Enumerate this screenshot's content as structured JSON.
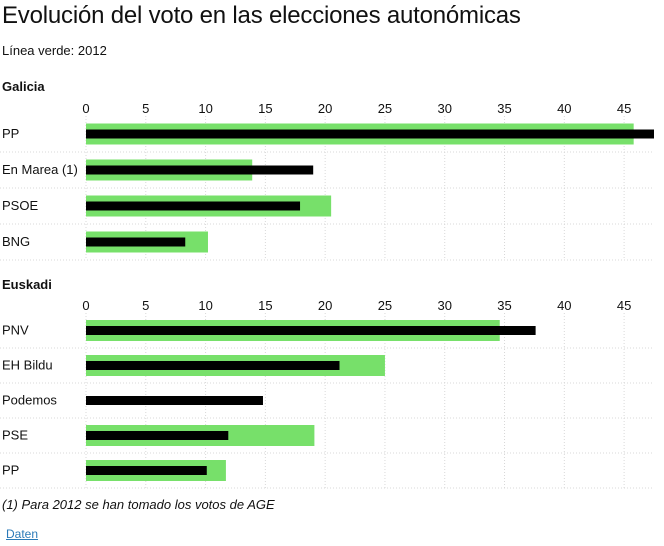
{
  "title": "Evolución del voto en las elecciones autonómicas",
  "subtitle": "Línea verde: 2012",
  "footnote": "(1) Para 2012 se han tomado los votos de AGE",
  "link_label": "Daten",
  "colors": {
    "green": "#77e06a",
    "black": "#000000",
    "grid": "#d8d8d8"
  },
  "chart_data": [
    {
      "type": "bar",
      "title": "Galicia",
      "ticks": [
        0,
        5,
        10,
        15,
        20,
        25,
        30,
        35,
        40,
        45
      ],
      "xlim": [
        0,
        47.5
      ],
      "categories": [
        "PP",
        "En Marea (1)",
        "PSOE",
        "BNG"
      ],
      "series": [
        {
          "values": [
            45.8,
            13.9,
            20.5,
            10.2
          ]
        },
        {
          "values": [
            47.6,
            19.0,
            17.9,
            8.3
          ]
        }
      ]
    },
    {
      "type": "bar",
      "title": "Euskadi",
      "ticks": [
        0,
        5,
        10,
        15,
        20,
        25,
        30,
        35,
        40,
        45
      ],
      "xlim": [
        0,
        47.5
      ],
      "categories": [
        "PNV",
        "EH Bildu",
        "Podemos",
        "PSE",
        "PP"
      ],
      "series": [
        {
          "values": [
            34.6,
            25.0,
            null,
            19.1,
            11.7
          ]
        },
        {
          "values": [
            37.6,
            21.2,
            14.8,
            11.9,
            10.1
          ]
        }
      ]
    }
  ]
}
